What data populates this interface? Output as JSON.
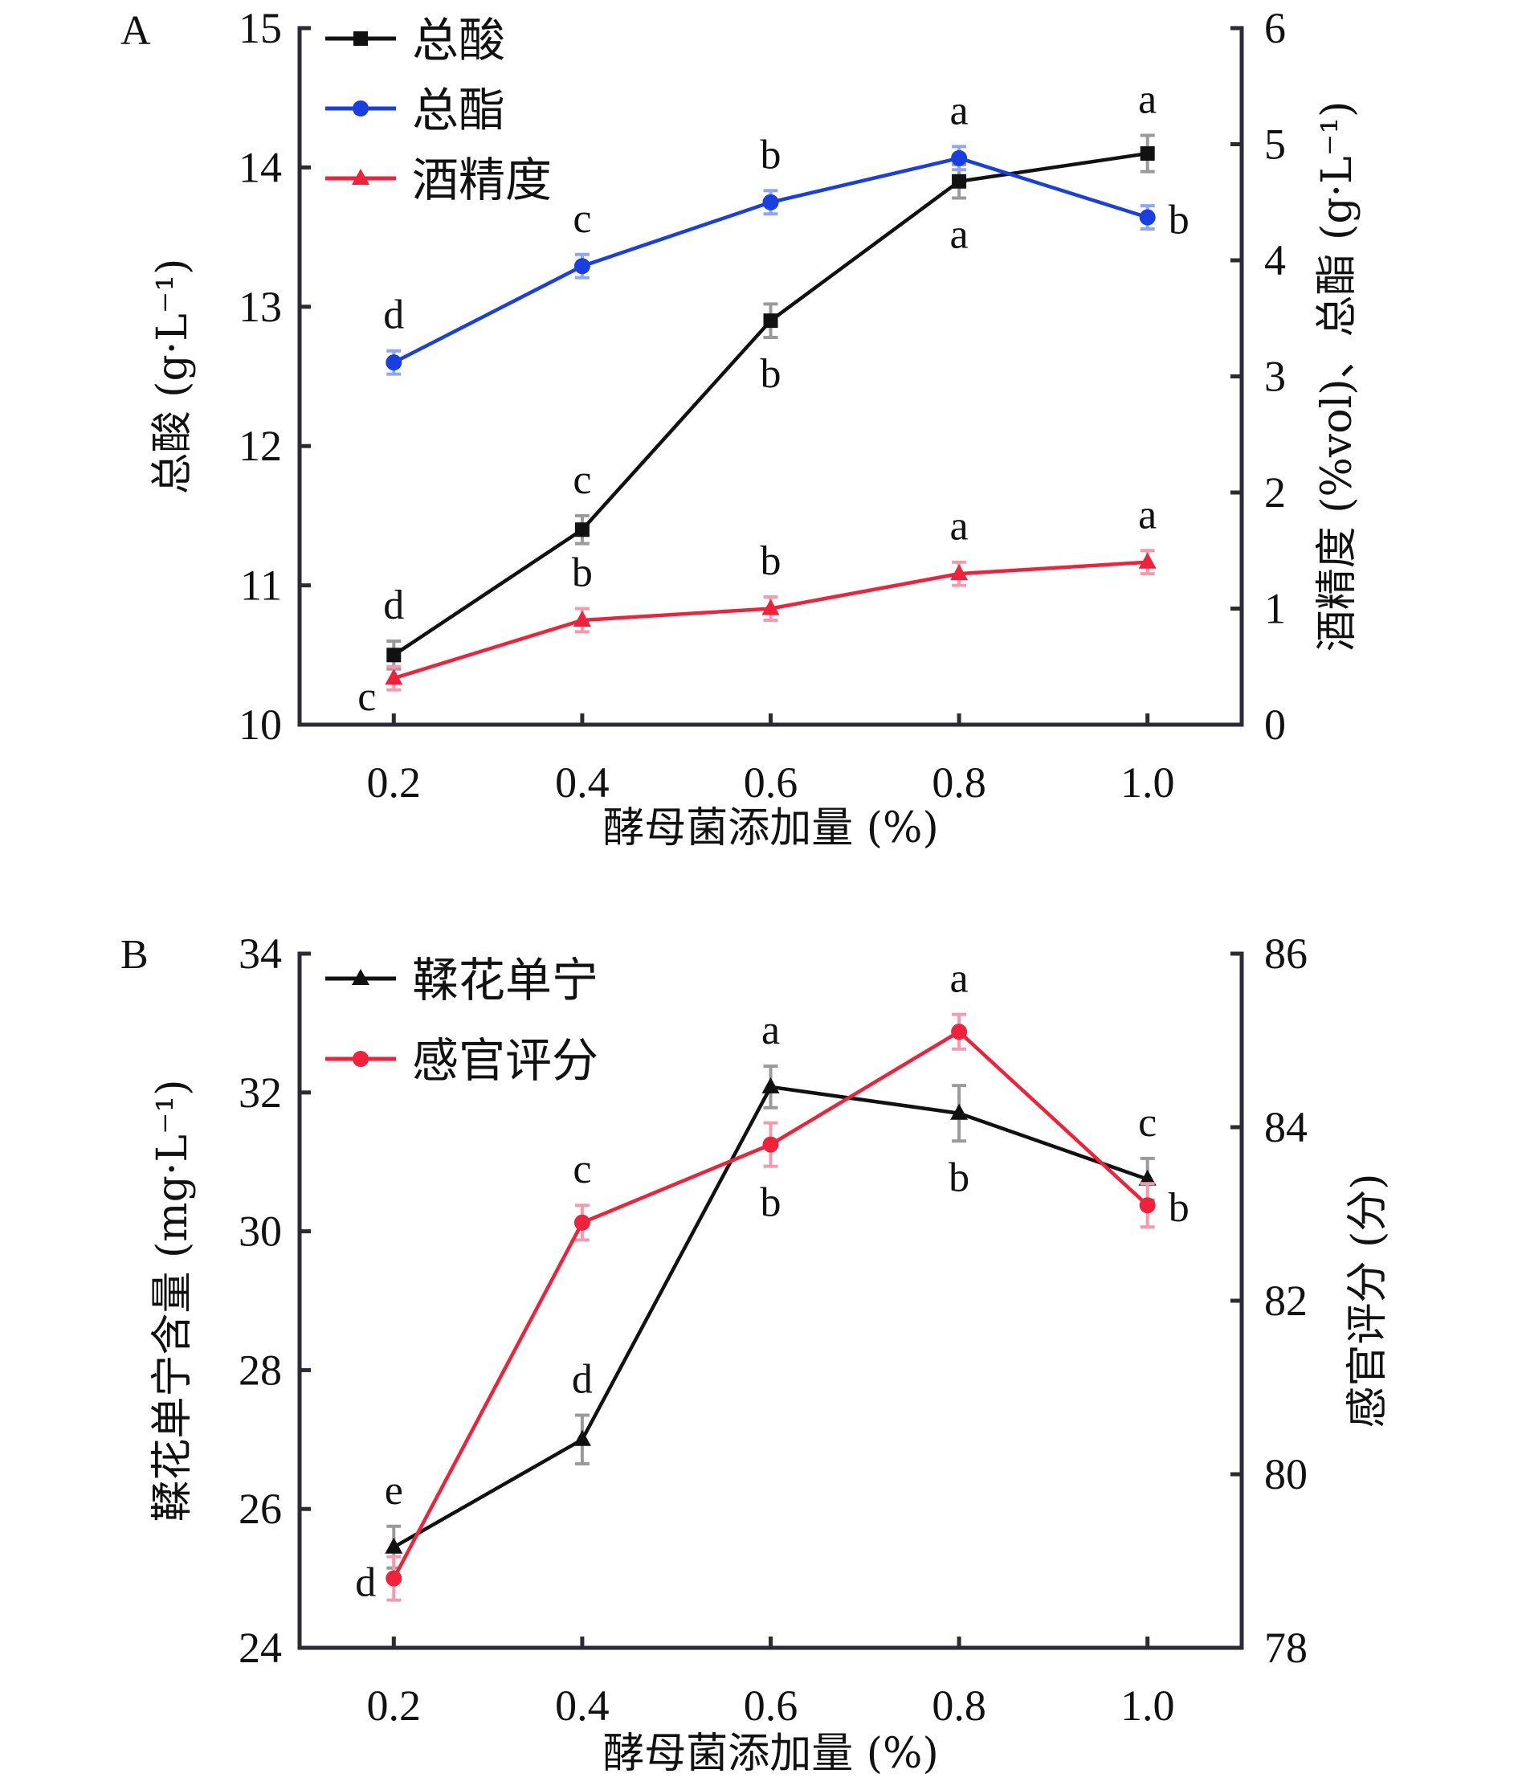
{
  "chart_data": [
    {
      "panel": "A",
      "type": "line",
      "xlabel": "酵母菌添加量 (%)",
      "x": [
        0.2,
        0.4,
        0.6,
        0.8,
        1.0
      ],
      "x_tick_labels": [
        "0.2",
        "0.4",
        "0.6",
        "0.8",
        "1.0"
      ],
      "xlim": [
        0.1,
        1.1
      ],
      "y_left": {
        "label": "总酸 (g·L⁻¹)",
        "ylim": [
          10,
          15
        ],
        "ticks": [
          10,
          11,
          12,
          13,
          14,
          15
        ]
      },
      "y_right": {
        "label": "酒精度 (%vol)、总酯 (g·L⁻¹)",
        "ylim": [
          0,
          6
        ],
        "ticks": [
          0,
          1,
          2,
          3,
          4,
          5,
          6
        ]
      },
      "legend_position": "top-left",
      "series": [
        {
          "name": "总酸",
          "axis": "left",
          "marker": "square",
          "color": "#111111",
          "errbar_color": "#9a9a9a",
          "values": [
            10.5,
            11.4,
            12.9,
            13.9,
            14.1
          ],
          "errors": [
            0.1,
            0.1,
            0.12,
            0.12,
            0.13
          ],
          "significance": [
            "d",
            "c",
            "b",
            "a",
            "a"
          ],
          "sig_position": [
            "above",
            "above",
            "below",
            "below",
            "above"
          ]
        },
        {
          "name": "总酯",
          "axis": "right",
          "marker": "circle",
          "color": "#1a3fe0",
          "errbar_color": "#8fa6f5",
          "values": [
            3.12,
            3.95,
            4.5,
            4.88,
            4.37
          ],
          "errors": [
            0.1,
            0.1,
            0.1,
            0.1,
            0.1
          ],
          "significance": [
            "d",
            "c",
            "b",
            "a",
            "b"
          ],
          "sig_position": [
            "above",
            "above",
            "above",
            "above",
            "right"
          ]
        },
        {
          "name": "酒精度",
          "axis": "right",
          "marker": "triangle",
          "color": "#f0213a",
          "errbar_color": "#f59aae",
          "values": [
            0.4,
            0.9,
            1.0,
            1.3,
            1.4
          ],
          "errors": [
            0.1,
            0.1,
            0.1,
            0.1,
            0.1
          ],
          "significance": [
            "c",
            "b",
            "b",
            "a",
            "a"
          ],
          "sig_position": [
            "below-left",
            "above",
            "above",
            "above",
            "above"
          ]
        }
      ]
    },
    {
      "panel": "B",
      "type": "line",
      "xlabel": "酵母菌添加量 (%)",
      "x": [
        0.2,
        0.4,
        0.6,
        0.8,
        1.0
      ],
      "x_tick_labels": [
        "0.2",
        "0.4",
        "0.6",
        "0.8",
        "1.0"
      ],
      "xlim": [
        0.1,
        1.1
      ],
      "y_left": {
        "label": "鞣花单宁含量 (mg·L⁻¹)",
        "ylim": [
          24,
          34
        ],
        "ticks": [
          24,
          26,
          28,
          30,
          32,
          34
        ]
      },
      "y_right": {
        "label": "感官评分 (分)",
        "ylim": [
          78,
          86
        ],
        "ticks": [
          78,
          80,
          82,
          84,
          86
        ]
      },
      "legend_position": "top-left",
      "series": [
        {
          "name": "鞣花单宁",
          "axis": "left",
          "marker": "triangle",
          "color": "#111111",
          "errbar_color": "#9a9a9a",
          "values": [
            25.45,
            27.0,
            32.08,
            31.7,
            30.75
          ],
          "errors": [
            0.3,
            0.35,
            0.3,
            0.4,
            0.3
          ],
          "significance": [
            "e",
            "d",
            "a",
            "b",
            "c"
          ],
          "sig_position": [
            "above",
            "above",
            "above",
            "below",
            "above"
          ]
        },
        {
          "name": "感官评分",
          "axis": "right",
          "marker": "circle",
          "color": "#f0213a",
          "errbar_color": "#f59aae",
          "values": [
            78.8,
            82.9,
            83.8,
            85.1,
            83.1
          ],
          "errors": [
            0.25,
            0.2,
            0.25,
            0.2,
            0.25
          ],
          "significance": [
            "d",
            "c",
            "b",
            "a",
            "b"
          ],
          "sig_position": [
            "left",
            "above",
            "below",
            "above",
            "right"
          ]
        }
      ]
    }
  ]
}
